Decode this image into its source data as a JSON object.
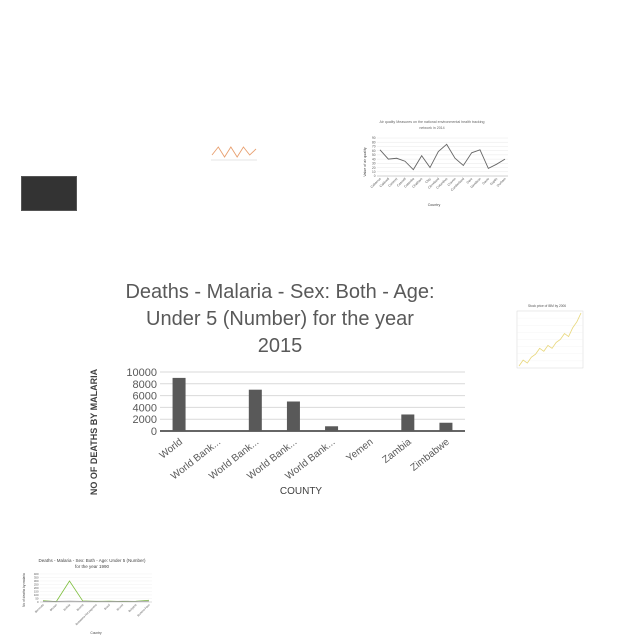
{
  "chart_data": [
    {
      "id": "main",
      "type": "bar",
      "title_lines": [
        "Deaths - Malaria - Sex: Both - Age:",
        "Under 5 (Number) for the year",
        "2015"
      ],
      "xlabel": "COUNTY",
      "ylabel": "NO OF DEATHS BY MALARIA",
      "categories": [
        "World",
        "World Bank...",
        "World Bank...",
        "World Bank...",
        "World Bank...",
        "Yemen",
        "Zambia",
        "Zimbabwe"
      ],
      "values": [
        9000,
        0,
        7000,
        5000,
        800,
        0,
        2800,
        1400
      ],
      "yticks": [
        "0",
        "2000",
        "4000",
        "6000",
        "8000",
        "10000"
      ],
      "ylim": [
        0,
        10000
      ],
      "grid": true,
      "bar_color": "#595959"
    },
    {
      "id": "air-quality",
      "type": "line",
      "title_lines": [
        "Air quality Measures on the national environmental health tracking",
        "network in 2014"
      ],
      "xlabel": "Country",
      "ylabel": "Value of air quality",
      "categories": [
        "Cabarrus",
        "Caldwell",
        "Carteret",
        "Caswell",
        "Catawba",
        "Chatham",
        "Clay",
        "Cleveland",
        "Columbus",
        "Craven",
        "Cumberland",
        "Dare",
        "Davidson",
        "Davie",
        "Duplin",
        "Durham"
      ],
      "values": [
        62,
        40,
        42,
        35,
        15,
        48,
        20,
        58,
        75,
        42,
        25,
        55,
        62,
        18,
        28,
        40
      ],
      "yticks": [
        "0",
        "10",
        "20",
        "30",
        "40",
        "50",
        "60",
        "70",
        "80",
        "90"
      ],
      "ylim": [
        0,
        90
      ],
      "line_color": "#666666"
    },
    {
      "id": "stock",
      "type": "line",
      "title": "Stock price of IBM by 2006",
      "values": [
        2,
        4,
        3,
        5,
        6,
        8,
        7,
        9,
        8,
        10,
        11,
        13,
        12,
        15,
        17,
        20
      ],
      "line_color": "#e8d77a"
    },
    {
      "id": "malaria-1990",
      "type": "line",
      "title_lines": [
        "Deaths - Malaria - Sex: Both - Age: Under 5 (Number)",
        "for the year 1990"
      ],
      "xlabel": "Country",
      "ylabel": "No of deaths by malaria",
      "categories": [
        "Bermuda",
        "Bhutan",
        "Bolivia",
        "Bosnia",
        "Botswana Herzegovina",
        "Brazil",
        "Brunei",
        "Bulgaria",
        "Burkina Faso"
      ],
      "series": [
        {
          "values": [
            20,
            5,
            300,
            15,
            8,
            12,
            6,
            10,
            25
          ],
          "color": "#7fbf3f"
        },
        {
          "values": [
            10,
            8,
            12,
            9,
            11,
            7,
            10,
            9,
            12
          ],
          "color": "#999999"
        }
      ],
      "yticks": [
        "0",
        "50",
        "100",
        "150",
        "200",
        "250",
        "300",
        "350",
        "400"
      ],
      "ylim": [
        0,
        400
      ]
    },
    {
      "id": "small-orange",
      "type": "line",
      "series": [
        {
          "values": [
            2,
            6,
            1,
            6,
            1,
            6,
            2,
            5
          ],
          "color": "#e8a070"
        }
      ]
    }
  ]
}
